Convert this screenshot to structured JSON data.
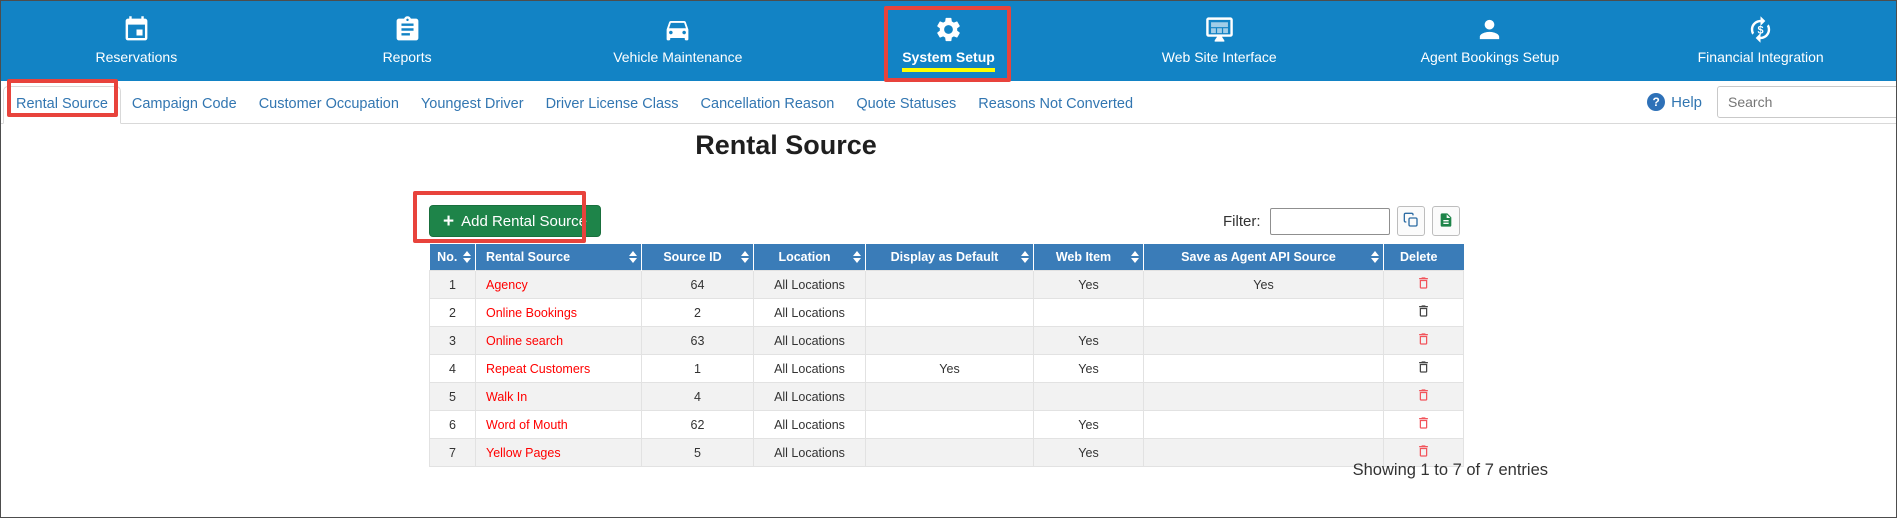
{
  "colors": {
    "nav_blue": "#1283c5",
    "table_header_blue": "#3a7cb8",
    "link_blue": "#3276b1",
    "red_link": "#ff0000",
    "green_button": "#1e8449",
    "annotation_red": "#e8433c",
    "yellow_highlight": "#ffff00",
    "trash_red": "#f2545b",
    "trash_dark": "#454545"
  },
  "top_nav": {
    "active": "System Setup",
    "items": [
      {
        "label": "Reservations",
        "icon": "calendar-icon"
      },
      {
        "label": "Reports",
        "icon": "report-icon"
      },
      {
        "label": "Vehicle Maintenance",
        "icon": "car-icon"
      },
      {
        "label": "System Setup",
        "icon": "gear-icon"
      },
      {
        "label": "Web Site Interface",
        "icon": "monitor-icon"
      },
      {
        "label": "Agent Bookings Setup",
        "icon": "agent-icon"
      },
      {
        "label": "Financial Integration",
        "icon": "financial-icon"
      }
    ]
  },
  "sub_nav": {
    "active": "Rental Source",
    "items": [
      "Rental Source",
      "Campaign Code",
      "Customer Occupation",
      "Youngest Driver",
      "Driver License Class",
      "Cancellation Reason",
      "Quote Statuses",
      "Reasons Not Converted"
    ],
    "help_label": "Help",
    "search_placeholder": "Search"
  },
  "page": {
    "title": "Rental Source",
    "add_button": {
      "icon": "+",
      "label": "Add Rental Source"
    },
    "filter_label": "Filter:",
    "filter_value": "",
    "showing_text": "Showing 1 to 7 of 7 entries"
  },
  "table": {
    "columns": [
      {
        "label": "No.",
        "sortable": true
      },
      {
        "label": "Rental Source",
        "sortable": true
      },
      {
        "label": "Source ID",
        "sortable": true
      },
      {
        "label": "Location",
        "sortable": true
      },
      {
        "label": "Display as Default",
        "sortable": true
      },
      {
        "label": "Web Item",
        "sortable": true
      },
      {
        "label": "Save as Agent API Source",
        "sortable": true
      },
      {
        "label": "Delete",
        "sortable": false
      }
    ],
    "rows": [
      {
        "no": "1",
        "rental_source": "Agency",
        "source_id": "64",
        "location": "All Locations",
        "display_as_default": "",
        "web_item": "Yes",
        "save_as_agent_api_source": "Yes",
        "delete_icon": "trash-red"
      },
      {
        "no": "2",
        "rental_source": "Online Bookings",
        "source_id": "2",
        "location": "All Locations",
        "display_as_default": "",
        "web_item": "",
        "save_as_agent_api_source": "",
        "delete_icon": "trash-dark"
      },
      {
        "no": "3",
        "rental_source": "Online search",
        "source_id": "63",
        "location": "All Locations",
        "display_as_default": "",
        "web_item": "Yes",
        "save_as_agent_api_source": "",
        "delete_icon": "trash-red"
      },
      {
        "no": "4",
        "rental_source": "Repeat Customers",
        "source_id": "1",
        "location": "All Locations",
        "display_as_default": "Yes",
        "web_item": "Yes",
        "save_as_agent_api_source": "",
        "delete_icon": "trash-dark"
      },
      {
        "no": "5",
        "rental_source": "Walk In",
        "source_id": "4",
        "location": "All Locations",
        "display_as_default": "",
        "web_item": "",
        "save_as_agent_api_source": "",
        "delete_icon": "trash-red"
      },
      {
        "no": "6",
        "rental_source": "Word of Mouth",
        "source_id": "62",
        "location": "All Locations",
        "display_as_default": "",
        "web_item": "Yes",
        "save_as_agent_api_source": "",
        "delete_icon": "trash-red"
      },
      {
        "no": "7",
        "rental_source": "Yellow Pages",
        "source_id": "5",
        "location": "All Locations",
        "display_as_default": "",
        "web_item": "Yes",
        "save_as_agent_api_source": "",
        "delete_icon": "trash-red"
      }
    ]
  }
}
